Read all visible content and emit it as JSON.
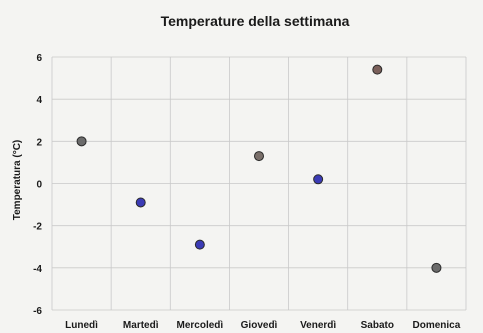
{
  "chart_data": {
    "type": "scatter",
    "title": "Temperature della settimana",
    "xlabel": "",
    "ylabel": "Temperatura (°C)",
    "categories": [
      "Lunedì",
      "Martedì",
      "Mercoledì",
      "Giovedì",
      "Venerdì",
      "Sabato",
      "Domenica"
    ],
    "values": [
      2,
      -0.9,
      -2.9,
      1.3,
      0.2,
      5.4,
      -4
    ],
    "point_colors": [
      "#6b6b6b",
      "#3b3bb5",
      "#3b3bb5",
      "#7a6f6a",
      "#3b3bb5",
      "#7a5f5a",
      "#6b6b6b"
    ],
    "yticks": [
      6,
      4,
      2,
      0,
      -2,
      -4,
      -6
    ],
    "ylim": [
      -6,
      6
    ],
    "grid": true,
    "legend": "none"
  }
}
